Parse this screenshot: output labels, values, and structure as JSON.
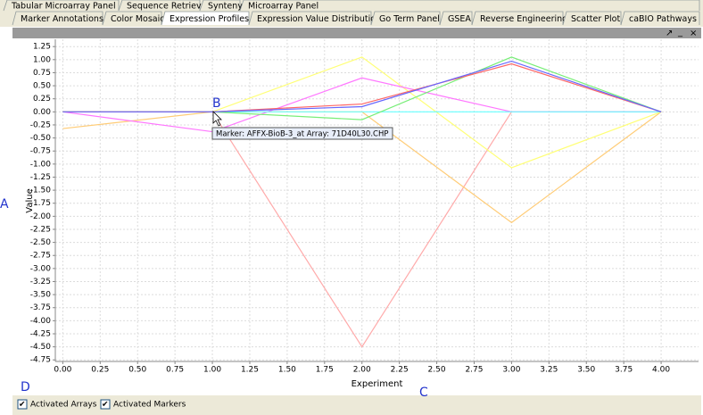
{
  "tabs": {
    "row1": [
      "Tabular Microarray Panel",
      "Sequence Retriever",
      "Synteny",
      "Microarray Panel"
    ],
    "row2": [
      "Marker Annotations",
      "Color Mosaic",
      "Expression Profiles",
      "Expression Value Distribution",
      "Go Term Panel",
      "GSEA",
      "Reverse Engineering",
      "Scatter Plot",
      "caBIO Pathways"
    ]
  },
  "chart_data": {
    "type": "line",
    "x_label": "Experiment",
    "y_label": "Value",
    "x": [
      0,
      1,
      2,
      3,
      4
    ],
    "series": [
      {
        "color": "#ffaaaa",
        "values": [
          0,
          0,
          -4.5,
          0,
          0
        ]
      },
      {
        "color": "#ffcc77",
        "values": [
          -0.32,
          0,
          0,
          -2.12,
          0
        ]
      },
      {
        "color": "#ffff77",
        "values": [
          0,
          0,
          1.05,
          -1.07,
          0
        ]
      },
      {
        "color": "#ff77ff",
        "values": [
          0,
          -0.38,
          0.65,
          0,
          0
        ]
      },
      {
        "color": "#66ffff",
        "values": [
          0,
          0,
          0,
          0,
          0
        ]
      },
      {
        "color": "#77ee77",
        "values": [
          0,
          0,
          -0.15,
          1.05,
          0
        ]
      },
      {
        "color": "#ff6666",
        "values": [
          0,
          0,
          0.15,
          0.92,
          0
        ]
      },
      {
        "color": "#6666ff",
        "values": [
          0,
          0,
          0.1,
          0.97,
          0
        ]
      }
    ],
    "xlim": [
      -0.05,
      4.25
    ],
    "ylim": [
      -4.78,
      1.39
    ],
    "grid": true,
    "xticks": [
      {
        "value": 0,
        "label": "0.00"
      },
      0.25,
      {
        "value": 0.5,
        "label": "0.50"
      },
      0.75,
      {
        "value": 1,
        "label": "1.00"
      },
      1.25,
      {
        "value": 1.5,
        "label": "1.50"
      },
      1.75,
      {
        "value": 2,
        "label": "2.00"
      },
      2.25,
      {
        "value": 2.5,
        "label": "2.50"
      },
      2.75,
      {
        "value": 3,
        "label": "3.00"
      },
      3.25,
      {
        "value": 3.5,
        "label": "3.50"
      },
      3.75,
      {
        "value": 4,
        "label": "4.00"
      }
    ],
    "yticks": [
      1.25,
      {
        "value": 1,
        "label": "1.00"
      },
      0.75,
      {
        "value": 0.5,
        "label": "0.50"
      },
      0.25,
      {
        "value": 0,
        "label": "0.00"
      },
      -0.25,
      {
        "value": -0.5,
        "label": "-0.50"
      },
      -0.75,
      {
        "value": -1,
        "label": "-1.00"
      },
      -1.25,
      {
        "value": -1.5,
        "label": "-1.50"
      },
      -1.75,
      {
        "value": -2,
        "label": "-2.00"
      },
      -2.25,
      {
        "value": -2.5,
        "label": "-2.50"
      },
      -2.75,
      {
        "value": -3,
        "label": "-3.00"
      },
      -3.25,
      {
        "value": -3.5,
        "label": "-3.50"
      },
      -3.75,
      {
        "value": -4,
        "label": "-4.00"
      },
      -4.25,
      {
        "value": -4.5,
        "label": "-4.50"
      },
      -4.75
    ]
  },
  "tooltip": "Marker: AFFX-BioB-3_at Array: 71D40L30.CHP",
  "annotations": [
    "A",
    "B",
    "C",
    "D"
  ],
  "checkboxes": [
    "Activated Arrays",
    "Activated Markers"
  ]
}
